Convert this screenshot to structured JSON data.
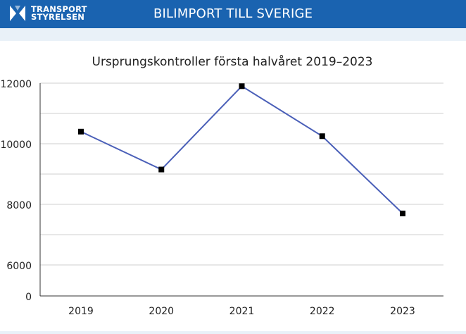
{
  "header": {
    "logo_line1": "TRANSPORT",
    "logo_line2": "STYRELSEN",
    "title": "BILIMPORT TILL SVERIGE"
  },
  "colors": {
    "header_bg": "#1a63b0",
    "line": "#4a5fb8",
    "marker": "#000000",
    "grid": "#cfcfcf",
    "page_bg": "#e9f1f8"
  },
  "chart_data": {
    "type": "line",
    "title": "Ursprungskontroller första halvåret 2019–2023",
    "xlabel": "",
    "ylabel": "",
    "categories": [
      "2019",
      "2020",
      "2021",
      "2022",
      "2023"
    ],
    "values": [
      10400,
      9150,
      11900,
      10250,
      7700
    ],
    "ylim": [
      0,
      12000
    ],
    "axis_break": "y-axis jumps from 0 to 6000",
    "y_ticks": [
      "0",
      "6000",
      "8000",
      "10000",
      "12000"
    ],
    "grid": true
  }
}
